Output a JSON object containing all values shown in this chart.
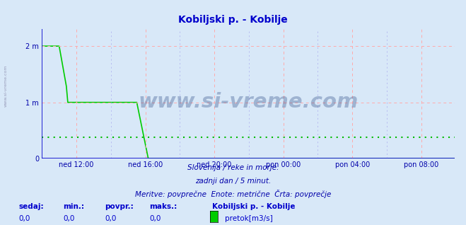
{
  "title": "Kobiljski p. - Kobilje",
  "title_color": "#0000cc",
  "title_fontsize": 10,
  "bg_color": "#d8e8f8",
  "plot_bg_color": "#d8e8f8",
  "line_color": "#00cc00",
  "avg_line_color": "#00bb00",
  "avg_value": 0.38,
  "ylim": [
    0,
    2.3
  ],
  "yticks": [
    0,
    1,
    2
  ],
  "ytick_labels": [
    "0",
    "1 m",
    "2 m"
  ],
  "xlabel_color": "#0000aa",
  "ylabel_color": "#0000aa",
  "grid_color_pink": "#ffaaaa",
  "grid_color_blue": "#aaaaee",
  "axis_color": "#0000cc",
  "xtick_labels": [
    "ned 12:00",
    "ned 16:00",
    "ned 20:00",
    "pon 00:00",
    "pon 04:00",
    "pon 08:00"
  ],
  "watermark_text": "www.si-vreme.com",
  "watermark_color": "#1a3a7a",
  "watermark_alpha": 0.3,
  "footer_line1": "Slovenija / reke in morje.",
  "footer_line2": "zadnji dan / 5 minut.",
  "footer_line3": "Meritve: povprečne  Enote: metrične  Črta: povprečje",
  "footer_color": "#0000aa",
  "legend_label_sedaj": "sedaj:",
  "legend_label_min": "min.:",
  "legend_label_povpr": "povpr.:",
  "legend_label_maks": "maks.:",
  "legend_value_sedaj": "0,0",
  "legend_value_min": "0,0",
  "legend_value_povpr": "0,0",
  "legend_value_maks": "0,0",
  "legend_station": "Kobiljski p. - Kobilje",
  "legend_unit": "pretok[m3/s]",
  "legend_color_box": "#00cc00",
  "sidebar_text": "www.si-vreme.com",
  "sidebar_color": "#8888aa",
  "num_points": 288
}
